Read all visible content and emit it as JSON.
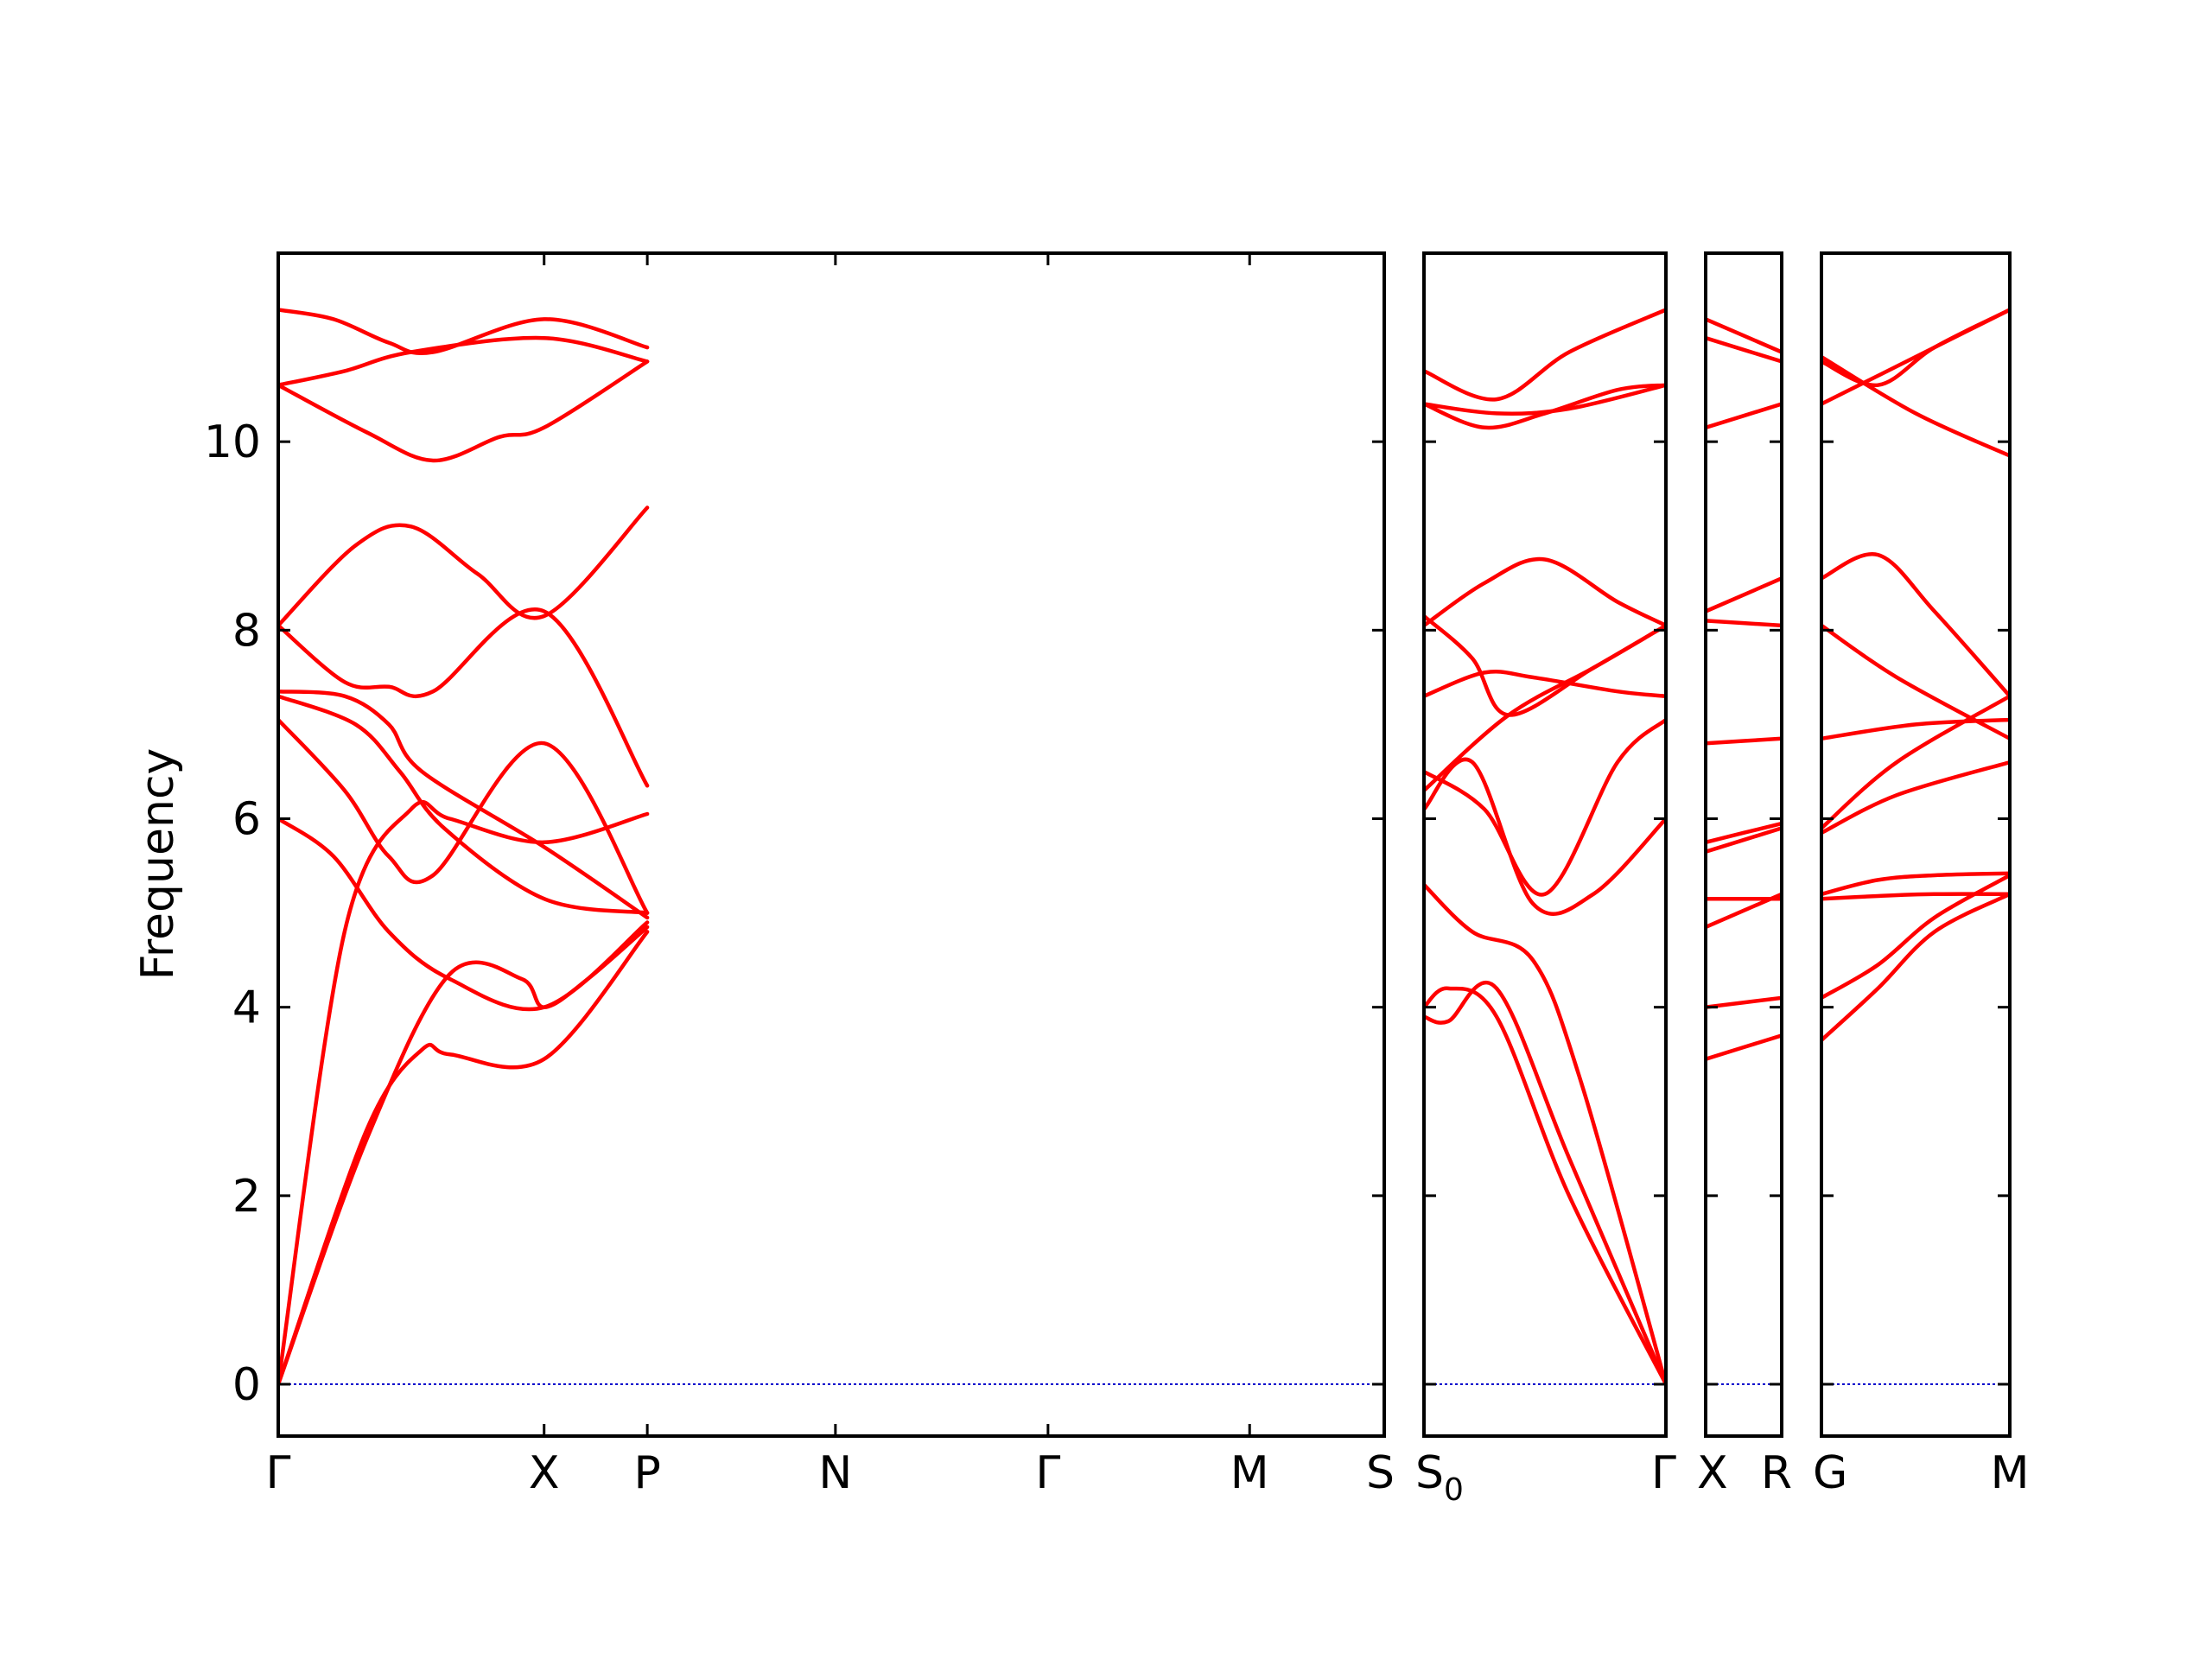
{
  "chart_data": {
    "type": "line",
    "title": "",
    "xlabel": "",
    "ylabel": "Frequency",
    "ylim": [
      -0.55,
      12.0
    ],
    "yticks": [
      0,
      2,
      4,
      6,
      8,
      10
    ],
    "ytick_labels": [
      "0",
      "2",
      "4",
      "6",
      "8",
      "10"
    ],
    "grid": false,
    "legend": "none",
    "line_color": "#ff0000",
    "zero_line_color": "#0000cc",
    "panels": [
      {
        "x_labels": [
          "Γ",
          "X",
          "P",
          "N",
          "Γ",
          "M",
          "S"
        ],
        "x_positions": [
          0,
          0.2404,
          0.3337,
          0.5038,
          0.696,
          0.8783,
          1
        ],
        "bands": [
          {
            "x": [
              0,
              0.08,
              0.155,
              0.22,
              0.2404,
              0.28,
              0.3337
            ],
            "y": [
              0,
              2.6,
              4.35,
              4.3,
              4.0,
              4.3,
              4.85
            ]
          },
          {
            "x": [
              0,
              0.08,
              0.13,
              0.155,
              0.2404,
              0.3337
            ],
            "y": [
              0,
              2.7,
              3.55,
              3.5,
              3.45,
              4.8
            ]
          },
          {
            "x": [
              0,
              0.06,
              0.12,
              0.155,
              0.2404,
              0.3337
            ],
            "y": [
              0,
              4.8,
              6.1,
              6.0,
              5.75,
              6.05
            ]
          },
          {
            "x": [
              0,
              0.05,
              0.1,
              0.155,
              0.2404,
              0.3337
            ],
            "y": [
              6.0,
              5.6,
              4.8,
              4.3,
              4.0,
              4.9
            ]
          },
          {
            "x": [
              0,
              0.06,
              0.1,
              0.14,
              0.2404,
              0.3337
            ],
            "y": [
              7.05,
              6.3,
              5.6,
              5.4,
              6.8,
              5.0
            ]
          },
          {
            "x": [
              0,
              0.07,
              0.11,
              0.15,
              0.2404,
              0.3337
            ],
            "y": [
              7.3,
              7.0,
              6.5,
              5.9,
              5.15,
              5.0
            ]
          },
          {
            "x": [
              0,
              0.06,
              0.1,
              0.13,
              0.2404,
              0.3337
            ],
            "y": [
              7.35,
              7.3,
              7.0,
              6.5,
              5.7,
              4.95
            ]
          },
          {
            "x": [
              0,
              0.06,
              0.1,
              0.14,
              0.2404,
              0.3337
            ],
            "y": [
              8.05,
              7.45,
              7.4,
              7.35,
              8.2,
              6.35
            ]
          },
          {
            "x": [
              0,
              0.07,
              0.12,
              0.18,
              0.2404,
              0.3337
            ],
            "y": [
              8.05,
              8.9,
              9.1,
              8.6,
              8.15,
              9.3
            ]
          },
          {
            "x": [
              0,
              0.08,
              0.14,
              0.2,
              0.2404,
              0.3337
            ],
            "y": [
              10.6,
              10.1,
              9.8,
              10.05,
              10.15,
              10.85
            ]
          },
          {
            "x": [
              0,
              0.06,
              0.12,
              0.2404,
              0.3337
            ],
            "y": [
              10.6,
              10.75,
              10.95,
              11.1,
              10.85
            ]
          },
          {
            "x": [
              0,
              0.05,
              0.1,
              0.14,
              0.2404,
              0.3337
            ],
            "y": [
              11.4,
              11.3,
              11.05,
              10.95,
              11.3,
              11.0
            ]
          }
        ]
      },
      {
        "x_labels": [
          "S0",
          "Γ"
        ],
        "x_positions": [
          0,
          1
        ],
        "bands": [
          {
            "x": [
              0,
              0.1,
              0.3,
              0.6,
              1.0
            ],
            "y": [
              4.0,
              4.2,
              3.9,
              2.0,
              0.0
            ]
          },
          {
            "x": [
              0,
              0.1,
              0.3,
              0.6,
              1.0
            ],
            "y": [
              3.9,
              3.85,
              4.2,
              2.4,
              0.0
            ]
          },
          {
            "x": [
              0,
              0.2,
              0.45,
              0.65,
              1.0
            ],
            "y": [
              5.3,
              4.8,
              4.5,
              3.2,
              0.0
            ]
          },
          {
            "x": [
              0,
              0.2,
              0.45,
              0.7,
              1.0
            ],
            "y": [
              6.1,
              6.6,
              5.1,
              5.2,
              6.0
            ]
          },
          {
            "x": [
              0,
              0.25,
              0.5,
              0.8,
              1.0
            ],
            "y": [
              6.5,
              6.1,
              5.2,
              6.6,
              7.05
            ]
          },
          {
            "x": [
              0,
              0.35,
              0.7,
              1.0
            ],
            "y": [
              6.3,
              7.1,
              7.6,
              8.05
            ]
          },
          {
            "x": [
              0,
              0.25,
              0.45,
              0.8,
              1.0
            ],
            "y": [
              7.3,
              7.55,
              7.5,
              7.35,
              7.3
            ]
          },
          {
            "x": [
              0,
              0.2,
              0.35,
              0.7,
              1.0
            ],
            "y": [
              8.15,
              7.7,
              7.1,
              7.6,
              8.05
            ]
          },
          {
            "x": [
              0,
              0.25,
              0.5,
              0.8,
              1.0
            ],
            "y": [
              8.05,
              8.5,
              8.75,
              8.3,
              8.05
            ]
          },
          {
            "x": [
              0,
              0.25,
              0.5,
              0.8,
              1.0
            ],
            "y": [
              10.4,
              10.15,
              10.3,
              10.55,
              10.6
            ]
          },
          {
            "x": [
              0,
              0.3,
              0.6,
              1.0
            ],
            "y": [
              10.4,
              10.3,
              10.35,
              10.6
            ]
          },
          {
            "x": [
              0,
              0.3,
              0.6,
              1.0
            ],
            "y": [
              10.75,
              10.45,
              10.95,
              11.4
            ]
          }
        ]
      },
      {
        "x_labels": [
          "X",
          "R"
        ],
        "x_positions": [
          0,
          1
        ],
        "bands": [
          {
            "x": [
              0,
              1
            ],
            "y": [
              3.45,
              3.7
            ]
          },
          {
            "x": [
              0,
              1
            ],
            "y": [
              4.0,
              4.1
            ]
          },
          {
            "x": [
              0,
              1
            ],
            "y": [
              4.85,
              5.2
            ]
          },
          {
            "x": [
              0,
              1
            ],
            "y": [
              5.15,
              5.15
            ]
          },
          {
            "x": [
              0,
              1
            ],
            "y": [
              5.65,
              5.9
            ]
          },
          {
            "x": [
              0,
              1
            ],
            "y": [
              5.75,
              5.95
            ]
          },
          {
            "x": [
              0,
              1
            ],
            "y": [
              6.8,
              6.85
            ]
          },
          {
            "x": [
              0,
              1
            ],
            "y": [
              8.1,
              8.05
            ]
          },
          {
            "x": [
              0,
              1
            ],
            "y": [
              8.2,
              8.55
            ]
          },
          {
            "x": [
              0,
              1
            ],
            "y": [
              10.15,
              10.4
            ]
          },
          {
            "x": [
              0,
              1
            ],
            "y": [
              11.1,
              10.85
            ]
          },
          {
            "x": [
              0,
              1
            ],
            "y": [
              11.3,
              10.95
            ]
          }
        ]
      },
      {
        "x_labels": [
          "G",
          "M"
        ],
        "x_positions": [
          0,
          1
        ],
        "bands": [
          {
            "x": [
              0,
              0.3,
              0.6,
              1.0
            ],
            "y": [
              3.65,
              4.2,
              4.8,
              5.2
            ]
          },
          {
            "x": [
              0,
              0.3,
              0.6,
              1.0
            ],
            "y": [
              4.1,
              4.45,
              4.95,
              5.4
            ]
          },
          {
            "x": [
              0,
              0.3,
              0.6,
              1.0
            ],
            "y": [
              5.15,
              5.18,
              5.2,
              5.2
            ]
          },
          {
            "x": [
              0,
              0.3,
              0.6,
              1.0
            ],
            "y": [
              5.2,
              5.35,
              5.4,
              5.42
            ]
          },
          {
            "x": [
              0,
              0.4,
              1.0
            ],
            "y": [
              5.85,
              6.25,
              6.6
            ]
          },
          {
            "x": [
              0,
              0.4,
              1.0
            ],
            "y": [
              5.9,
              6.6,
              7.3
            ]
          },
          {
            "x": [
              0,
              0.5,
              1.0
            ],
            "y": [
              6.85,
              7.0,
              7.05
            ]
          },
          {
            "x": [
              0,
              0.4,
              1.0
            ],
            "y": [
              8.05,
              7.5,
              6.85
            ]
          },
          {
            "x": [
              0,
              0.3,
              0.6,
              1.0
            ],
            "y": [
              8.55,
              8.8,
              8.2,
              7.3
            ]
          },
          {
            "x": [
              0,
              0.5,
              1.0
            ],
            "y": [
              10.9,
              10.3,
              9.85
            ]
          },
          {
            "x": [
              0,
              0.3,
              0.6,
              1.0
            ],
            "y": [
              10.85,
              10.6,
              11.0,
              11.4
            ]
          },
          {
            "x": [
              0,
              0.5,
              1.0
            ],
            "y": [
              10.4,
              10.9,
              11.4
            ]
          }
        ]
      }
    ]
  }
}
